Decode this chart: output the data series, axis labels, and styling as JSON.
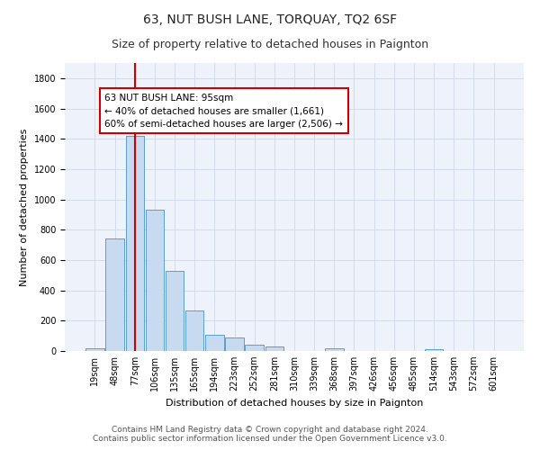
{
  "title": "63, NUT BUSH LANE, TORQUAY, TQ2 6SF",
  "subtitle": "Size of property relative to detached houses in Paignton",
  "xlabel": "Distribution of detached houses by size in Paignton",
  "ylabel": "Number of detached properties",
  "footer_line1": "Contains HM Land Registry data © Crown copyright and database right 2024.",
  "footer_line2": "Contains public sector information licensed under the Open Government Licence v3.0.",
  "categories": [
    "19sqm",
    "48sqm",
    "77sqm",
    "106sqm",
    "135sqm",
    "165sqm",
    "194sqm",
    "223sqm",
    "252sqm",
    "281sqm",
    "310sqm",
    "339sqm",
    "368sqm",
    "397sqm",
    "426sqm",
    "456sqm",
    "485sqm",
    "514sqm",
    "543sqm",
    "572sqm",
    "601sqm"
  ],
  "values": [
    20,
    740,
    1420,
    935,
    530,
    265,
    105,
    92,
    40,
    27,
    0,
    0,
    15,
    0,
    0,
    0,
    0,
    12,
    0,
    0,
    0
  ],
  "bar_color": "#c8daf0",
  "bar_edge_color": "#5a9fd4",
  "highlight_color": "#cc0000",
  "annotation_text_line1": "63 NUT BUSH LANE: 95sqm",
  "annotation_text_line2": "← 40% of detached houses are smaller (1,661)",
  "annotation_text_line3": "60% of semi-detached houses are larger (2,506) →",
  "annotation_box_edge_color": "#cc0000",
  "vline_x_index": 2,
  "ylim": [
    0,
    1900
  ],
  "yticks": [
    0,
    200,
    400,
    600,
    800,
    1000,
    1200,
    1400,
    1600,
    1800
  ],
  "grid_color": "#d0d8e8",
  "bg_color": "#ffffff",
  "plot_bg_color": "#eef2fa",
  "title_fontsize": 10,
  "subtitle_fontsize": 9,
  "ylabel_fontsize": 8,
  "xlabel_fontsize": 8,
  "tick_fontsize": 7,
  "footer_fontsize": 6.5
}
